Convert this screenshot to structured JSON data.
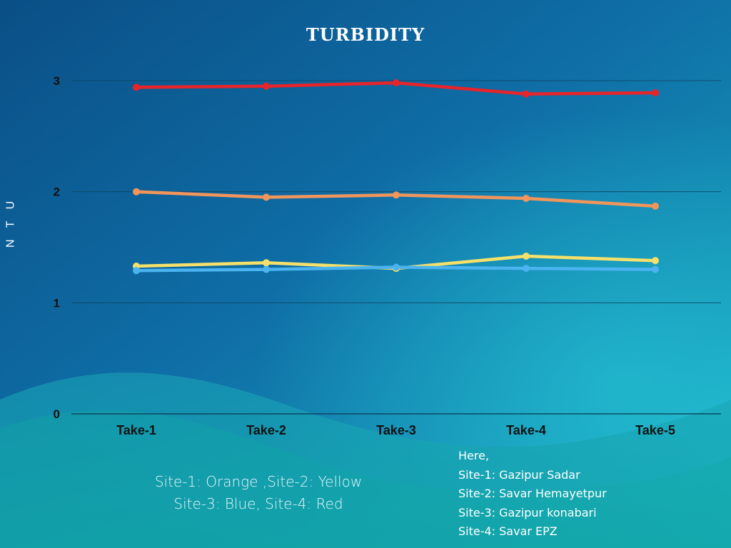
{
  "chart_data": {
    "type": "line",
    "title": "TURBIDITY",
    "xlabel": "",
    "ylabel": "N T U",
    "categories": [
      "Take-1",
      "Take-2",
      "Take-3",
      "Take-4",
      "Take-5"
    ],
    "ylim": [
      0,
      3
    ],
    "yticks": [
      "0",
      "1",
      "2",
      "3"
    ],
    "grid": true,
    "series": [
      {
        "name": "Site-1",
        "color": "#f2955a",
        "values": [
          2.0,
          1.95,
          1.97,
          1.94,
          1.87
        ]
      },
      {
        "name": "Site-2",
        "color": "#f5e06a",
        "values": [
          1.33,
          1.36,
          1.31,
          1.42,
          1.38
        ]
      },
      {
        "name": "Site-3",
        "color": "#4ab3f0",
        "values": [
          1.29,
          1.3,
          1.32,
          1.31,
          1.3
        ]
      },
      {
        "name": "Site-4",
        "color": "#e8242b",
        "values": [
          2.94,
          2.95,
          2.98,
          2.88,
          2.89
        ]
      }
    ]
  },
  "color_key": {
    "line1": "Site-1: Orange ,Site-2: Yellow",
    "line2": "Site-3: Blue, Site-4: Red"
  },
  "site_names": {
    "intro": "Here,",
    "items": [
      "Site-1: Gazipur Sadar",
      "Site-2: Savar Hemayetpur",
      "Site-3: Gazipur konabari",
      "Site-4: Savar EPZ"
    ]
  },
  "colors": {
    "background_top": "#0b5c93",
    "background_bottom": "#1fb5c4",
    "text": "#ffffff"
  }
}
